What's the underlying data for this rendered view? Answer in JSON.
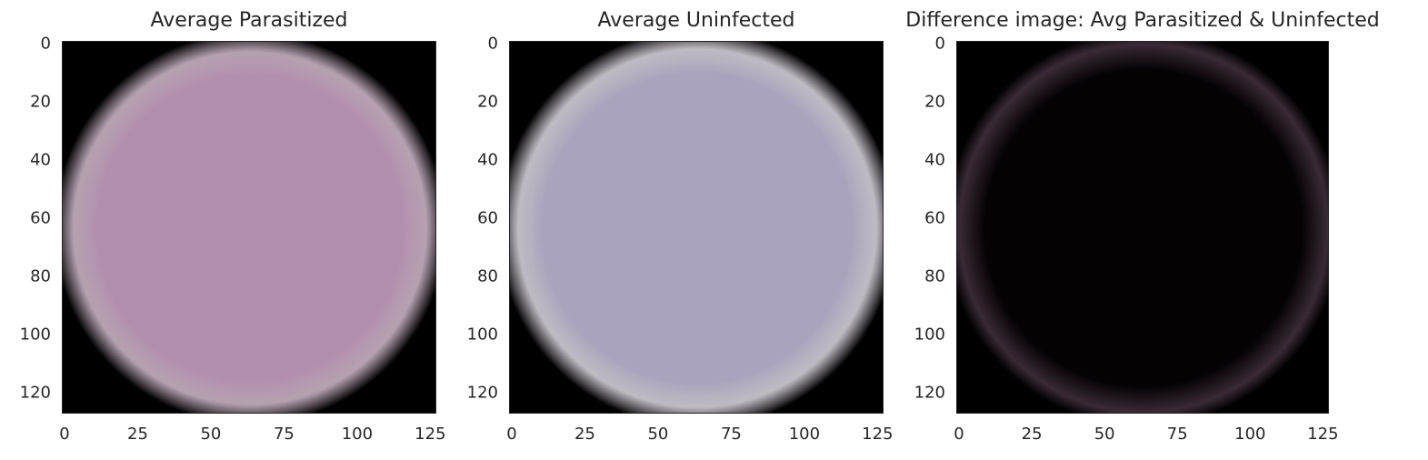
{
  "chart_data": [
    {
      "type": "heatmap",
      "title": "Average Parasitized",
      "xlim": [
        0,
        128
      ],
      "ylim": [
        128,
        0
      ],
      "xticks": [
        "0",
        "25",
        "50",
        "75",
        "100",
        "125"
      ],
      "yticks": [
        "0",
        "20",
        "40",
        "60",
        "80",
        "100",
        "120"
      ],
      "xtick_values": [
        0,
        25,
        50,
        75,
        100,
        125
      ],
      "ytick_values": [
        0,
        20,
        40,
        60,
        80,
        100,
        120
      ],
      "image": {
        "center": [
          64,
          64
        ],
        "radius": 62,
        "fill_color": "#b38fae",
        "edge_color": "#c9b3c4",
        "background": "#000000"
      }
    },
    {
      "type": "heatmap",
      "title": "Average Uninfected",
      "xlim": [
        0,
        128
      ],
      "ylim": [
        128,
        0
      ],
      "xticks": [
        "0",
        "25",
        "50",
        "75",
        "100",
        "125"
      ],
      "yticks": [
        "0",
        "20",
        "40",
        "60",
        "80",
        "100",
        "120"
      ],
      "xtick_values": [
        0,
        25,
        50,
        75,
        100,
        125
      ],
      "ytick_values": [
        0,
        20,
        40,
        60,
        80,
        100,
        120
      ],
      "image": {
        "center": [
          64,
          64
        ],
        "radius": 63,
        "fill_color": "#aba3bd",
        "edge_color": "#d4cfd8",
        "background": "#000000"
      }
    },
    {
      "type": "heatmap",
      "title": "Difference image: Avg Parasitized & Uninfected",
      "xlim": [
        0,
        128
      ],
      "ylim": [
        128,
        0
      ],
      "xticks": [
        "0",
        "25",
        "50",
        "75",
        "100",
        "125"
      ],
      "yticks": [
        "0",
        "20",
        "40",
        "60",
        "80",
        "100",
        "120"
      ],
      "xtick_values": [
        0,
        25,
        50,
        75,
        100,
        125
      ],
      "ytick_values": [
        0,
        20,
        40,
        60,
        80,
        100,
        120
      ],
      "image": {
        "center": [
          64,
          64
        ],
        "radius": 63,
        "fill_color": "#050204",
        "edge_color": "#3a2a36",
        "background": "#000000"
      }
    }
  ]
}
